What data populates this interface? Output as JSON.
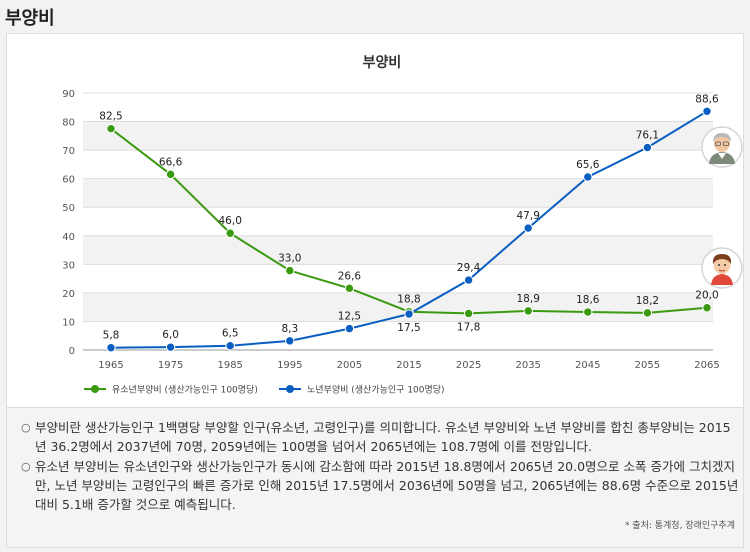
{
  "page_title": "부양비",
  "chart_data": {
    "type": "line",
    "title": "부양비",
    "categories": [
      "1965",
      "1975",
      "1985",
      "1995",
      "2005",
      "2015",
      "2025",
      "2035",
      "2045",
      "2055",
      "2065"
    ],
    "ylim": [
      0,
      90
    ],
    "yticks": [
      0,
      10,
      20,
      30,
      40,
      50,
      60,
      70,
      80,
      90
    ],
    "grid": true,
    "legend_position": "bottom-left",
    "series": [
      {
        "name": "유소년부양비 (생산가능인구 100명당)",
        "color": "#3a9a10",
        "values": [
          82.5,
          66.6,
          46.0,
          33.0,
          26.6,
          18.8,
          17.8,
          18.9,
          18.6,
          18.2,
          20.0
        ],
        "plot_values": [
          77.5,
          61.5,
          40.9,
          27.8,
          21.6,
          13.4,
          12.8,
          13.7,
          13.3,
          13.0,
          14.8
        ],
        "labels": [
          "82,5",
          "66,6",
          "46,0",
          "33,0",
          "26,6",
          "18,8",
          "17,8",
          "18,9",
          "18,6",
          "18,2",
          "20,0"
        ]
      },
      {
        "name": "노년부양비 (생산가능인구 100명당)",
        "color": "#0a5ec2",
        "values": [
          5.8,
          6.0,
          6.5,
          8.3,
          12.5,
          17.5,
          29.4,
          47.9,
          65.6,
          76.1,
          88.6
        ],
        "plot_values": [
          0.8,
          1.0,
          1.5,
          3.2,
          7.5,
          12.6,
          24.5,
          42.7,
          60.6,
          70.9,
          83.6
        ],
        "labels": [
          "5,8",
          "6,0",
          "6,5",
          "8,3",
          "12,5",
          "17,5",
          "29,4",
          "47,9",
          "65,6",
          "76,1",
          "88,6"
        ]
      }
    ]
  },
  "icons": [
    "elderly-man-icon",
    "child-icon"
  ],
  "notes": [
    "부양비란 생산가능인구 1백명당 부양할 인구(유소년, 고령인구)를 의미합니다. 유소년 부양비와 노년 부양비를 합친 총부양비는 2015년 36.2명에서 2037년에 70명, 2059년에는 100명을 넘어서 2065년에는 108.7명에 이를 전망입니다.",
    "유소년 부양비는 유소년인구와 생산가능인구가 동시에 감소함에 따라 2015년 18.8명에서 2065년 20.0명으로 소폭 증가에 그치겠지만, 노년 부양비는 고령인구의 빠른 증가로 인해 2015년 17.5명에서 2036년에 50명을 넘고, 2065년에는 88.6명 수준으로 2015년 대비 5.1배 증가할 것으로 예측됩니다."
  ],
  "source": "* 출처: 통계청, 장래인구추계"
}
